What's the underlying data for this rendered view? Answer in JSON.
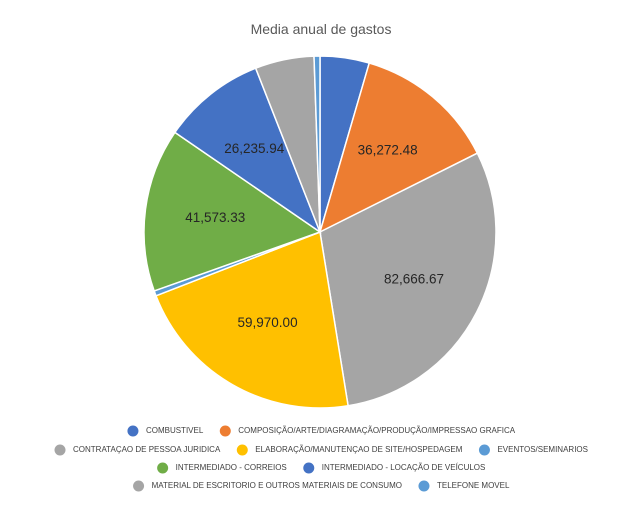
{
  "chart_data": {
    "type": "pie",
    "title": "Media anual de gastos",
    "slices": [
      {
        "name": "COMBUSTIVEL",
        "value": 12500,
        "label": "",
        "color": "#4472C4"
      },
      {
        "name": "COMPOSIÇÃO/ARTE/DIAGRAMAÇÃO/PRODUÇÃO/IMPRESSAO GRAFICA",
        "value": 36272.48,
        "label": "36,272.48",
        "color": "#ED7D31"
      },
      {
        "name": "CONTRATAÇAO DE PESSOA JURIDICA",
        "value": 82666.67,
        "label": "82,666.67",
        "color": "#A5A5A5"
      },
      {
        "name": "ELABORAÇÃO/MANUTENÇAO DE SITE/HOSPEDAGEM",
        "value": 59970.0,
        "label": "59,970.00",
        "color": "#FFC000"
      },
      {
        "name": "EVENTOS/SEMINARIOS",
        "value": 1300,
        "label": "",
        "color": "#5B9BD5"
      },
      {
        "name": "INTERMEDIADO - CORREIOS",
        "value": 41573.33,
        "label": "41,573.33",
        "color": "#70AD47"
      },
      {
        "name": "INTERMEDIADO - LOCAÇÃO DE VEÍCULOS",
        "value": 26235.94,
        "label": "26,235.94",
        "color": "#4472C4"
      },
      {
        "name": "MATERIAL DE ESCRITORIO E OUTROS MATERIAIS DE CONSUMO",
        "value": 15000,
        "label": "",
        "color": "#A5A5A5"
      },
      {
        "name": "TELEFONE MOVEL",
        "value": 1500,
        "label": "",
        "color": "#5B9BD5"
      }
    ],
    "legend_position": "bottom"
  }
}
